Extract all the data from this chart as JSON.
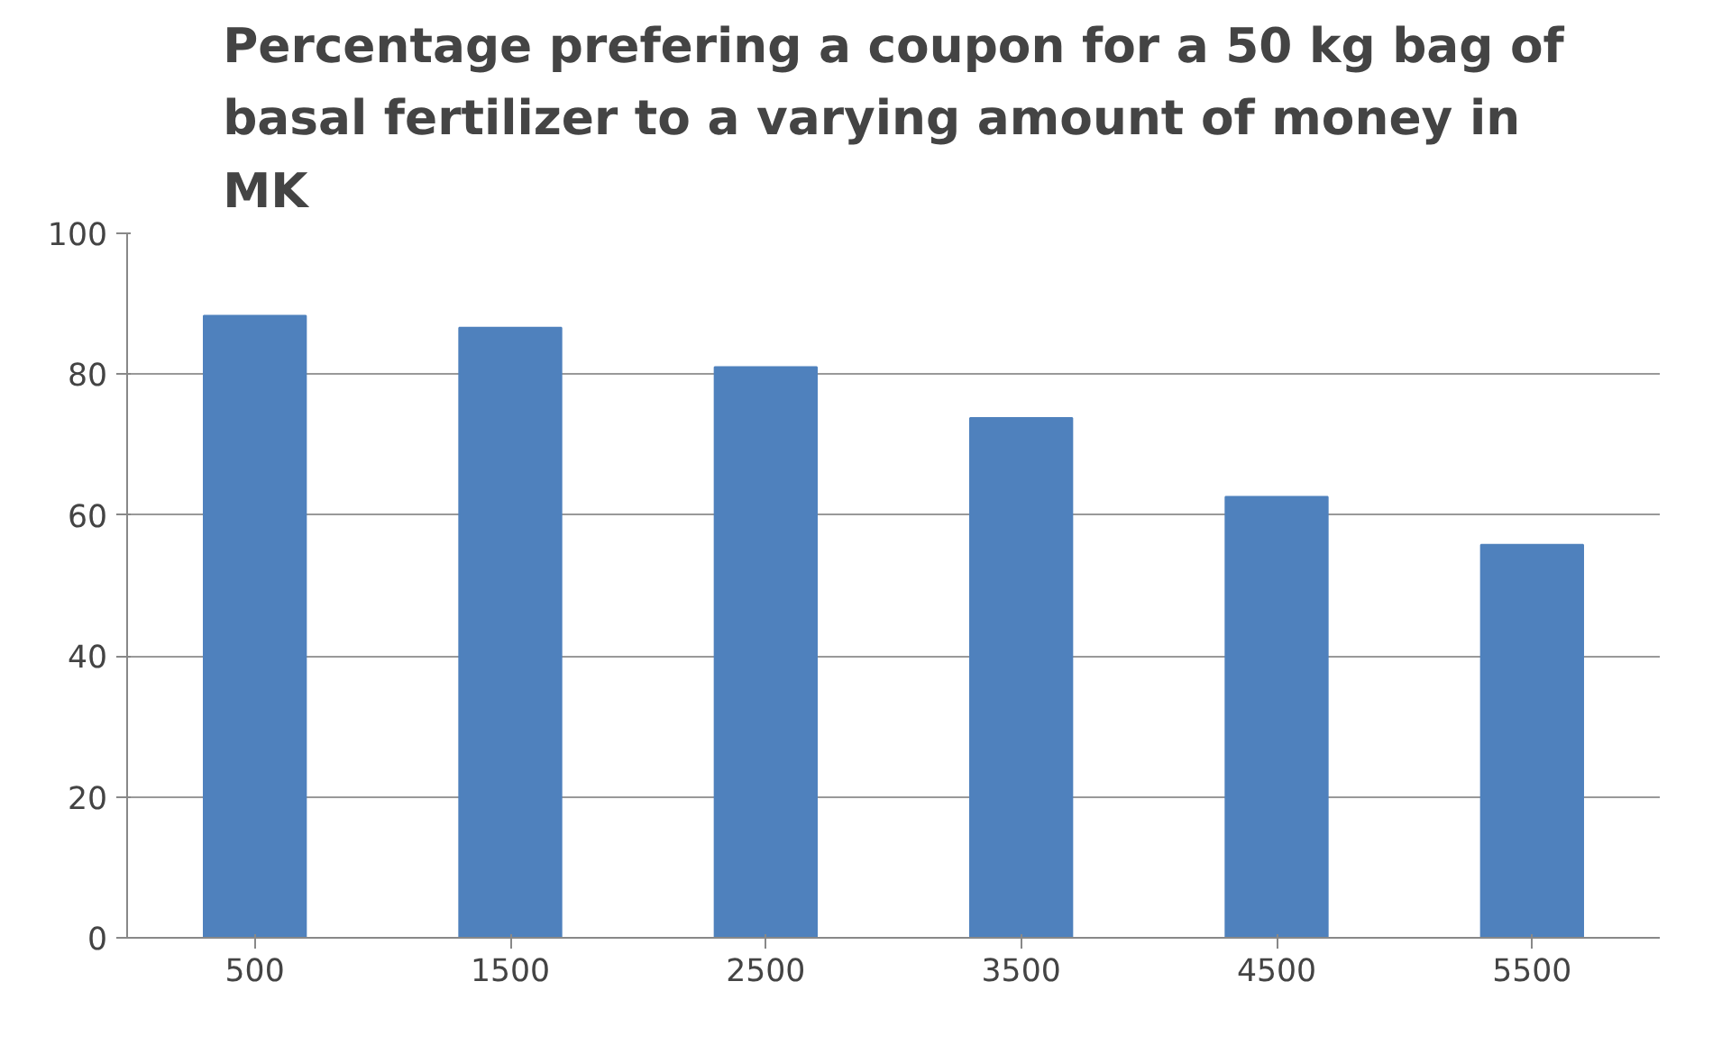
{
  "chart_data": {
    "type": "bar",
    "title": "Percentage prefering a coupon for a 50 kg bag of basal fertilizer to a varying amount of money in MK",
    "categories": [
      "500",
      "1500",
      "2500",
      "3500",
      "4500",
      "5500"
    ],
    "values": [
      88.3,
      86.6,
      81,
      73.8,
      62.6,
      55.8
    ],
    "color": "#4f81bd",
    "ylim": [
      0,
      100
    ],
    "yticks": [
      0,
      20,
      40,
      60,
      80,
      100
    ],
    "grid": "y"
  }
}
